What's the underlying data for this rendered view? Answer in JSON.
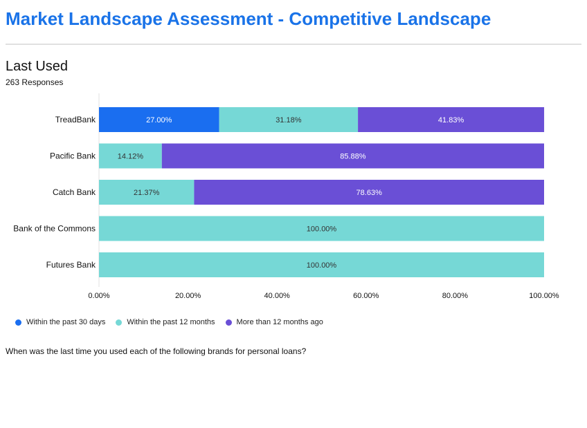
{
  "header": {
    "title": "Market Landscape Assessment - Competitive Landscape"
  },
  "section": {
    "title": "Last Used",
    "responses": "263 Responses",
    "question": "When was the last time you used each of the following brands for personal loans?"
  },
  "chart_data": {
    "type": "bar",
    "orientation": "horizontal",
    "stacked": true,
    "categories": [
      "TreadBank",
      "Pacific Bank",
      "Catch Bank",
      "Bank of the Commons",
      "Futures Bank"
    ],
    "series": [
      {
        "name": "Within the past 30 days",
        "color": "#1a6ef0",
        "label_color": "#ffffff",
        "values": [
          27.0,
          0,
          0,
          0,
          0
        ]
      },
      {
        "name": "Within the past 12 months",
        "color": "#76d8d6",
        "label_color": "#333333",
        "values": [
          31.18,
          14.12,
          21.37,
          100.0,
          100.0
        ]
      },
      {
        "name": "More than 12 months ago",
        "color": "#6a4fd6",
        "label_color": "#ffffff",
        "values": [
          41.83,
          85.88,
          78.63,
          0,
          0
        ]
      }
    ],
    "xlim": [
      0,
      100
    ],
    "xticks": [
      "0.00%",
      "20.00%",
      "40.00%",
      "60.00%",
      "80.00%",
      "100.00%"
    ],
    "tick_values": [
      0,
      20,
      40,
      60,
      80,
      100
    ],
    "legend_position": "bottom-left",
    "grid": false
  }
}
